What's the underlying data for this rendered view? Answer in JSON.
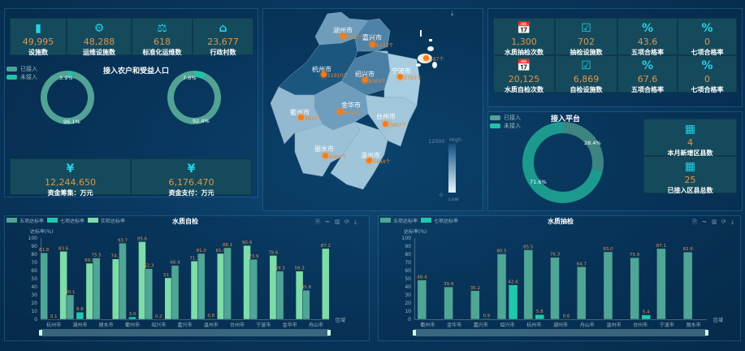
{
  "top_stats": [
    {
      "icon": "chip-icon",
      "glyph": "▮",
      "value": "49,995",
      "label": "设施数"
    },
    {
      "icon": "gears-icon",
      "glyph": "⚙",
      "value": "48,288",
      "label": "运维设施数"
    },
    {
      "icon": "scale-icon",
      "glyph": "⚖",
      "value": "618",
      "label": "标准化运维数"
    },
    {
      "icon": "home-icon",
      "glyph": "⌂",
      "value": "23,677",
      "label": "行政村数"
    }
  ],
  "population": {
    "title": "接入农户和受益人口",
    "legend": [
      "已接入",
      "未接入"
    ],
    "donuts": [
      {
        "connected": "96.1%",
        "not_connected": "3.9%",
        "connected_value": 96.1
      },
      {
        "connected": "92.4%",
        "not_connected": "7.6%",
        "connected_value": 92.4
      }
    ]
  },
  "funds": [
    {
      "glyph": "¥",
      "value": "12,244.650",
      "label": "资金筹集：万元"
    },
    {
      "glyph": "¥",
      "value": "6,176.470",
      "label": "资金支付：万元"
    }
  ],
  "map": {
    "download_icon": "⤓",
    "visual_high": "High",
    "visual_low": "Low",
    "visual_max": "12000",
    "visual_min": "0",
    "regions": [
      {
        "name": "湖州市",
        "value": "5995个"
      },
      {
        "name": "嘉兴市",
        "value": "8131个"
      },
      {
        "name": "杭州市",
        "value": "11910个"
      },
      {
        "name": "绍兴市",
        "value": "8383个"
      },
      {
        "name": "宁波市",
        "value": "3793个"
      },
      {
        "name": "舟山市",
        "value": "487个"
      },
      {
        "name": "金华市",
        "value": "6544个"
      },
      {
        "name": "衢州市",
        "value": "4815个"
      },
      {
        "name": "台州市",
        "value": "3897个"
      },
      {
        "name": "丽水市",
        "value": "4460个"
      },
      {
        "name": "温州市",
        "value": "4484个"
      }
    ]
  },
  "quality_stats": [
    {
      "glyph": "📅",
      "value": "1,300",
      "label": "水质抽检次数"
    },
    {
      "glyph": "☑",
      "value": "702",
      "label": "抽检设施数"
    },
    {
      "glyph": "%",
      "value": "43.6",
      "label": "五项合格率"
    },
    {
      "glyph": "%",
      "value": "0",
      "label": "七项合格率"
    },
    {
      "glyph": "📅",
      "value": "20,125",
      "label": "水质自检次数"
    },
    {
      "glyph": "☑",
      "value": "6,869",
      "label": "自检设施数"
    },
    {
      "glyph": "%",
      "value": "67.6",
      "label": "五项合格率"
    },
    {
      "glyph": "%",
      "value": "0",
      "label": "七项合格率"
    }
  ],
  "platform": {
    "title": "接入平台",
    "legend": [
      "已接入",
      "未接入"
    ],
    "connected": "28.4%",
    "not_connected": "71.6%",
    "connected_value": 28.4,
    "cards": [
      {
        "glyph": "▦",
        "value": "4",
        "label": "本月新增区县数"
      },
      {
        "glyph": "▦",
        "value": "25",
        "label": "已接入区县总数"
      }
    ]
  },
  "colors": {
    "five": "#4fa596",
    "seven": "#22c7ad",
    "actual": "#7ddcaa",
    "label": "#e0954a"
  },
  "chart_data": [
    {
      "type": "bar",
      "title": "水质自检",
      "ylabel": "达标率(%)",
      "xlabel": "区域",
      "ylim": [
        0,
        100
      ],
      "yticks": [
        "0",
        "10",
        "20",
        "30",
        "40",
        "50",
        "60",
        "70",
        "80",
        "90",
        "100"
      ],
      "categories": [
        "杭州市",
        "湖州市",
        "丽水市",
        "衢州市",
        "绍兴市",
        "嘉兴市",
        "温州市",
        "台州市",
        "宁波市",
        "金华市",
        "舟山市"
      ],
      "series": [
        {
          "name": "五项达标率",
          "values": [
            81.8,
            30.1,
            75.5,
            93.7,
            62.3,
            66.4,
            81.0,
            88.1,
            73.9,
            59.3,
            35.8
          ]
        },
        {
          "name": "七项达标率",
          "values": [
            0.1,
            8.8,
            null,
            3.0,
            0.2,
            null,
            0.8,
            null,
            null,
            null,
            null
          ]
        },
        {
          "name": "实检达标率",
          "values": [
            83.6,
            69.0,
            74.3,
            95.6,
            51.1,
            71.7,
            81.0,
            90.9,
            78.6,
            59.3,
            87.2
          ]
        }
      ]
    },
    {
      "type": "bar",
      "title": "水质抽检",
      "ylabel": "达标率(%)",
      "xlabel": "区域",
      "ylim": [
        0,
        100
      ],
      "yticks": [
        "0",
        "10",
        "20",
        "30",
        "40",
        "50",
        "60",
        "70",
        "80",
        "90",
        "100"
      ],
      "categories": [
        "衢州市",
        "金华市",
        "嘉兴市",
        "绍兴市",
        "杭州市",
        "湖州市",
        "舟山市",
        "温州市",
        "台州市",
        "宁波市",
        "丽水市"
      ],
      "series": [
        {
          "name": "五项达标率",
          "values": [
            48.4,
            39.9,
            35.2,
            80.5,
            85.5,
            76.3,
            64.7,
            83.0,
            75.9,
            87.1,
            82.8
          ]
        },
        {
          "name": "七项达标率",
          "values": [
            null,
            null,
            0.9,
            42.4,
            5.8,
            0.6,
            null,
            null,
            5.4,
            null,
            null
          ]
        }
      ]
    }
  ],
  "chart_tools": [
    "🗎",
    "⏦",
    "▥",
    "⟳",
    "⤓"
  ]
}
